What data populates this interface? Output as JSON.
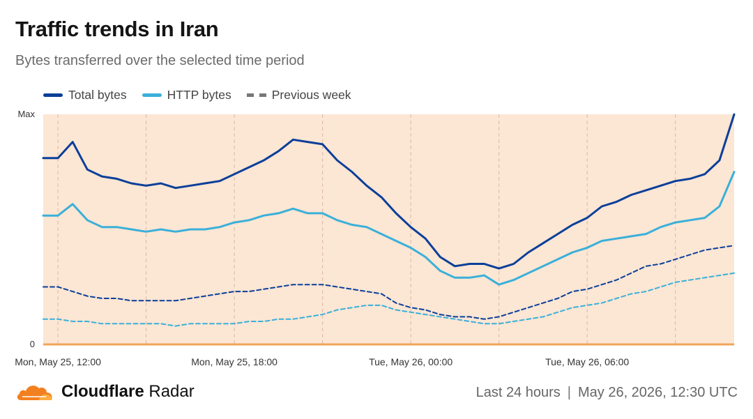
{
  "header": {
    "title": "Traffic trends in Iran",
    "subtitle": "Bytes transferred over the selected time period"
  },
  "legend": {
    "items": [
      {
        "label": "Total bytes",
        "color": "#0a3f99",
        "style": "solid"
      },
      {
        "label": "HTTP bytes",
        "color": "#3ab0d9",
        "style": "solid"
      },
      {
        "label": "Previous week",
        "color": "#777777",
        "style": "dashed"
      }
    ]
  },
  "footer": {
    "brand_bold": "Cloudflare",
    "brand_rest": "Radar",
    "logo_icon": "cloudflare-cloud-icon",
    "range": "Last 24 hours",
    "separator": "|",
    "timestamp": "May 26, 2026, 12:30 UTC"
  },
  "chart_data": {
    "type": "line",
    "title": "Traffic trends in Iran",
    "subtitle": "Bytes transferred over the selected time period",
    "y_tick_labels": [
      "Max",
      "0"
    ],
    "ylim": [
      0,
      1
    ],
    "x_tick_labels": [
      "Mon, May 25, 12:00",
      "Mon, May 25, 18:00",
      "Tue, May 26, 00:00",
      "Tue, May 26, 06:00"
    ],
    "x_tick_hours": [
      0.5,
      6.5,
      12.5,
      18.5
    ],
    "grid_hours": [
      0.5,
      3.5,
      6.5,
      9.5,
      12.5,
      15.5,
      18.5,
      21.5
    ],
    "x_range_hours": [
      0,
      23.5
    ],
    "background": "#fce6d4",
    "baseline_color": "#f0a55a",
    "legend_position": "top-left",
    "series": [
      {
        "name": "Total bytes",
        "color": "#0a3f99",
        "dashed": false,
        "x": [
          0,
          0.5,
          1,
          1.5,
          2,
          2.5,
          3,
          3.5,
          4,
          4.5,
          5,
          5.5,
          6,
          6.5,
          7,
          7.5,
          8,
          8.5,
          9,
          9.5,
          10,
          10.5,
          11,
          11.5,
          12,
          12.5,
          13,
          13.5,
          14,
          14.5,
          15,
          15.5,
          16,
          16.5,
          17,
          17.5,
          18,
          18.5,
          19,
          19.5,
          20,
          20.5,
          21,
          21.5,
          22,
          22.5,
          23,
          23.5
        ],
        "y": [
          0.81,
          0.81,
          0.88,
          0.76,
          0.73,
          0.72,
          0.7,
          0.69,
          0.7,
          0.68,
          0.69,
          0.7,
          0.71,
          0.74,
          0.77,
          0.8,
          0.84,
          0.89,
          0.88,
          0.87,
          0.8,
          0.75,
          0.69,
          0.64,
          0.57,
          0.51,
          0.46,
          0.38,
          0.34,
          0.35,
          0.35,
          0.33,
          0.35,
          0.4,
          0.44,
          0.48,
          0.52,
          0.55,
          0.6,
          0.62,
          0.65,
          0.67,
          0.69,
          0.71,
          0.72,
          0.74,
          0.8,
          1.0
        ]
      },
      {
        "name": "HTTP bytes",
        "color": "#3ab0d9",
        "dashed": false,
        "x": [
          0,
          0.5,
          1,
          1.5,
          2,
          2.5,
          3,
          3.5,
          4,
          4.5,
          5,
          5.5,
          6,
          6.5,
          7,
          7.5,
          8,
          8.5,
          9,
          9.5,
          10,
          10.5,
          11,
          11.5,
          12,
          12.5,
          13,
          13.5,
          14,
          14.5,
          15,
          15.5,
          16,
          16.5,
          17,
          17.5,
          18,
          18.5,
          19,
          19.5,
          20,
          20.5,
          21,
          21.5,
          22,
          22.5,
          23,
          23.5
        ],
        "y": [
          0.56,
          0.56,
          0.61,
          0.54,
          0.51,
          0.51,
          0.5,
          0.49,
          0.5,
          0.49,
          0.5,
          0.5,
          0.51,
          0.53,
          0.54,
          0.56,
          0.57,
          0.59,
          0.57,
          0.57,
          0.54,
          0.52,
          0.51,
          0.48,
          0.45,
          0.42,
          0.38,
          0.32,
          0.29,
          0.29,
          0.3,
          0.26,
          0.28,
          0.31,
          0.34,
          0.37,
          0.4,
          0.42,
          0.45,
          0.46,
          0.47,
          0.48,
          0.51,
          0.53,
          0.54,
          0.55,
          0.6,
          0.75
        ]
      },
      {
        "name": "Previous week",
        "color": "#0a3f99",
        "dashed": true,
        "x": [
          0,
          0.5,
          1,
          1.5,
          2,
          2.5,
          3,
          3.5,
          4,
          4.5,
          5,
          5.5,
          6,
          6.5,
          7,
          7.5,
          8,
          8.5,
          9,
          9.5,
          10,
          10.5,
          11,
          11.5,
          12,
          12.5,
          13,
          13.5,
          14,
          14.5,
          15,
          15.5,
          16,
          16.5,
          17,
          17.5,
          18,
          18.5,
          19,
          19.5,
          20,
          20.5,
          21,
          21.5,
          22,
          22.5,
          23,
          23.5
        ],
        "y": [
          0.25,
          0.25,
          0.23,
          0.21,
          0.2,
          0.2,
          0.19,
          0.19,
          0.19,
          0.19,
          0.2,
          0.21,
          0.22,
          0.23,
          0.23,
          0.24,
          0.25,
          0.26,
          0.26,
          0.26,
          0.25,
          0.24,
          0.23,
          0.22,
          0.18,
          0.16,
          0.15,
          0.13,
          0.12,
          0.12,
          0.11,
          0.12,
          0.14,
          0.16,
          0.18,
          0.2,
          0.23,
          0.24,
          0.26,
          0.28,
          0.31,
          0.34,
          0.35,
          0.37,
          0.39,
          0.41,
          0.42,
          0.43
        ]
      },
      {
        "name": "Previous week HTTP",
        "color": "#3ab0d9",
        "dashed": true,
        "x": [
          0,
          0.5,
          1,
          1.5,
          2,
          2.5,
          3,
          3.5,
          4,
          4.5,
          5,
          5.5,
          6,
          6.5,
          7,
          7.5,
          8,
          8.5,
          9,
          9.5,
          10,
          10.5,
          11,
          11.5,
          12,
          12.5,
          13,
          13.5,
          14,
          14.5,
          15,
          15.5,
          16,
          16.5,
          17,
          17.5,
          18,
          18.5,
          19,
          19.5,
          20,
          20.5,
          21,
          21.5,
          22,
          22.5,
          23,
          23.5
        ],
        "y": [
          0.11,
          0.11,
          0.1,
          0.1,
          0.09,
          0.09,
          0.09,
          0.09,
          0.09,
          0.08,
          0.09,
          0.09,
          0.09,
          0.09,
          0.1,
          0.1,
          0.11,
          0.11,
          0.12,
          0.13,
          0.15,
          0.16,
          0.17,
          0.17,
          0.15,
          0.14,
          0.13,
          0.12,
          0.11,
          0.1,
          0.09,
          0.09,
          0.1,
          0.11,
          0.12,
          0.14,
          0.16,
          0.17,
          0.18,
          0.2,
          0.22,
          0.23,
          0.25,
          0.27,
          0.28,
          0.29,
          0.3,
          0.31
        ]
      }
    ]
  }
}
